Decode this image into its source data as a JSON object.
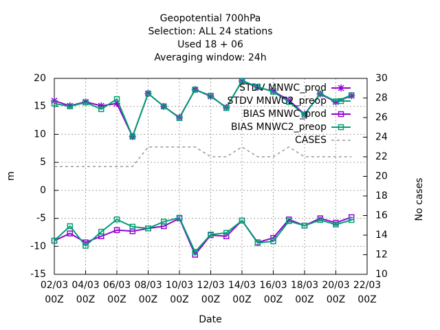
{
  "chart_data": {
    "type": "line",
    "title": [
      "Geopotential 700hPa",
      "Selection: ALL      24 stations",
      "Used  18 + 06",
      "Averaging window: 24h"
    ],
    "xlabel": "Date",
    "ylabel": "m",
    "y2label": "No cases",
    "x": [
      2,
      3,
      4,
      5,
      6,
      7,
      8,
      9,
      10,
      11,
      12,
      13,
      14,
      15,
      16,
      17,
      18,
      19,
      20,
      21
    ],
    "xlim": [
      2,
      22
    ],
    "xticks": [
      {
        "value": 2,
        "label": "02/03 00Z"
      },
      {
        "value": 4,
        "label": "04/03 00Z"
      },
      {
        "value": 6,
        "label": "06/03 00Z"
      },
      {
        "value": 8,
        "label": "08/03 00Z"
      },
      {
        "value": 10,
        "label": "10/03 00Z"
      },
      {
        "value": 12,
        "label": "12/03 00Z"
      },
      {
        "value": 14,
        "label": "14/03 00Z"
      },
      {
        "value": 16,
        "label": "16/03 00Z"
      },
      {
        "value": 18,
        "label": "18/03 00Z"
      },
      {
        "value": 20,
        "label": "20/03 00Z"
      },
      {
        "value": 22,
        "label": "22/03 00Z"
      }
    ],
    "ylim": [
      -15,
      20
    ],
    "yticks": [
      -15,
      -10,
      -5,
      0,
      5,
      10,
      15,
      20
    ],
    "y2lim": [
      10,
      30
    ],
    "y2ticks": [
      10,
      12,
      14,
      16,
      18,
      20,
      22,
      24,
      26,
      28,
      30
    ],
    "grid": true,
    "legend": "top-right",
    "series": [
      {
        "name": "STDV MNWC_prod",
        "color": "#9400d3",
        "marker": "star",
        "values": [
          16.0,
          15.1,
          15.8,
          15.1,
          15.5,
          9.6,
          17.3,
          15.0,
          13.0,
          18.0,
          16.8,
          14.8,
          19.5,
          18.4,
          17.7,
          16.1,
          13.6,
          17.2,
          15.8,
          16.9
        ]
      },
      {
        "name": "STDV MNWC2_preop",
        "color": "#009e73",
        "marker": "square",
        "values": [
          15.5,
          15.0,
          15.7,
          14.5,
          16.3,
          9.6,
          17.3,
          15.0,
          12.9,
          18.0,
          16.9,
          14.7,
          19.6,
          18.5,
          17.6,
          15.8,
          13.5,
          17.3,
          15.9,
          17.0
        ]
      },
      {
        "name": "BIAS MNWC_prod",
        "color": "#9400d3",
        "marker": "square",
        "values": [
          -9.0,
          -7.7,
          -9.3,
          -8.2,
          -7.1,
          -7.3,
          -6.8,
          -6.4,
          -5.0,
          -11.5,
          -8.0,
          -8.2,
          -5.4,
          -9.3,
          -8.5,
          -5.2,
          -6.3,
          -5.0,
          -5.8,
          -4.8
        ]
      },
      {
        "name": "BIAS MNWC2_preop",
        "color": "#009e73",
        "marker": "square",
        "values": [
          -9.0,
          -6.4,
          -9.9,
          -7.4,
          -5.2,
          -6.5,
          -6.8,
          -5.6,
          -4.9,
          -11.0,
          -7.9,
          -7.6,
          -5.4,
          -9.4,
          -9.1,
          -5.5,
          -6.3,
          -5.3,
          -6.1,
          -5.3
        ]
      },
      {
        "name": "CASES",
        "color": "#999999",
        "dashed": true,
        "axis": "y2",
        "values": [
          21,
          21,
          21,
          21,
          21,
          21,
          23,
          23,
          23,
          23,
          22,
          22,
          23,
          22,
          22,
          23,
          22,
          22,
          22,
          22
        ]
      }
    ]
  }
}
